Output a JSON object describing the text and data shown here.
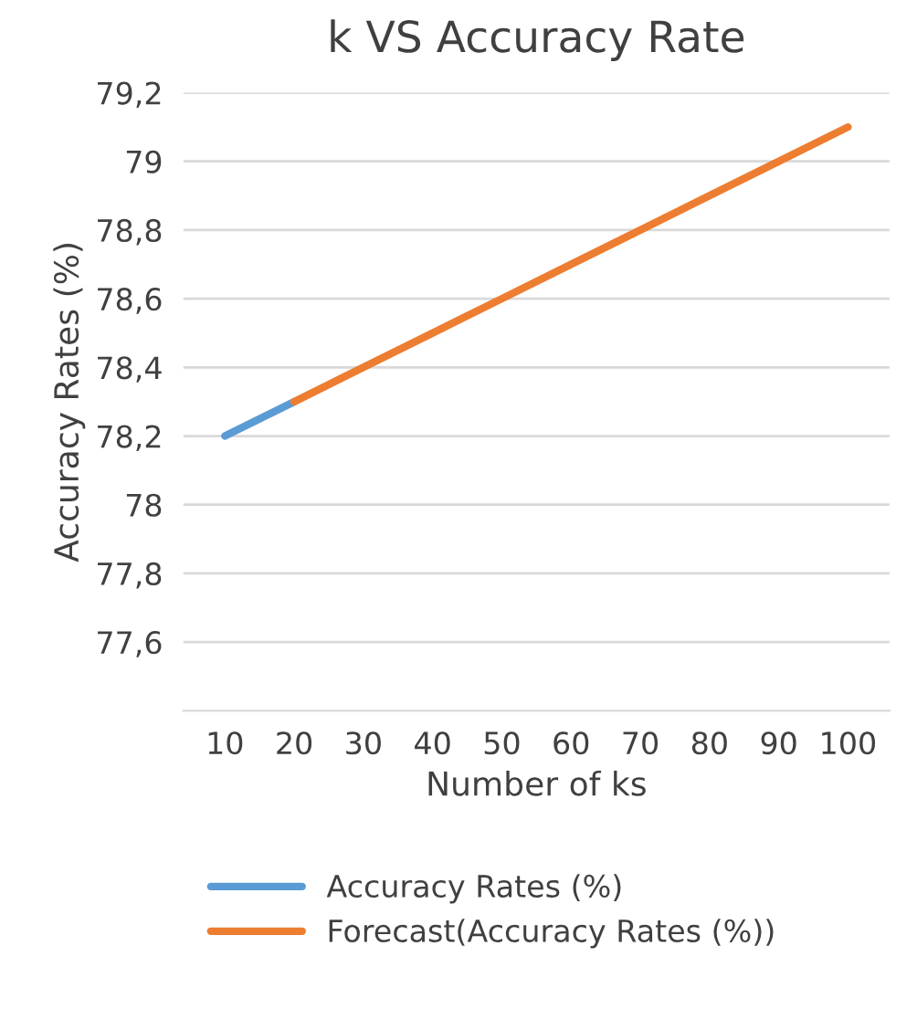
{
  "chart_data": {
    "type": "line",
    "title": "k VS Accuracy Rate",
    "xlabel": "Number of ks",
    "ylabel": "Accuracy Rates (%)",
    "categories": [
      "10",
      "20",
      "30",
      "40",
      "50",
      "60",
      "70",
      "80",
      "90",
      "100"
    ],
    "series": [
      {
        "name": "Accuracy Rates (%)",
        "color": "#5b9bd5",
        "values": [
          78.2,
          78.3,
          null,
          null,
          null,
          null,
          null,
          null,
          null,
          null
        ]
      },
      {
        "name": "Forecast(Accuracy Rates (%))",
        "color": "#ed7d31",
        "values": [
          null,
          78.3,
          78.4,
          78.5,
          78.6,
          78.7,
          78.8,
          78.9,
          79.0,
          79.1
        ]
      }
    ],
    "ylim": [
      77.4,
      79.2
    ],
    "yticks": [
      {
        "value": 77.6,
        "label": "77,6"
      },
      {
        "value": 77.8,
        "label": "77,8"
      },
      78,
      {
        "value": 78.2,
        "label": "78,2"
      },
      {
        "value": 78.4,
        "label": "78,4"
      },
      {
        "value": 78.6,
        "label": "78,6"
      },
      {
        "value": 78.8,
        "label": "78,8"
      },
      79,
      {
        "value": 79.2,
        "label": "79,2"
      }
    ],
    "grid": "y",
    "legend": "bottom",
    "marker": "none",
    "line_style": "solid"
  }
}
